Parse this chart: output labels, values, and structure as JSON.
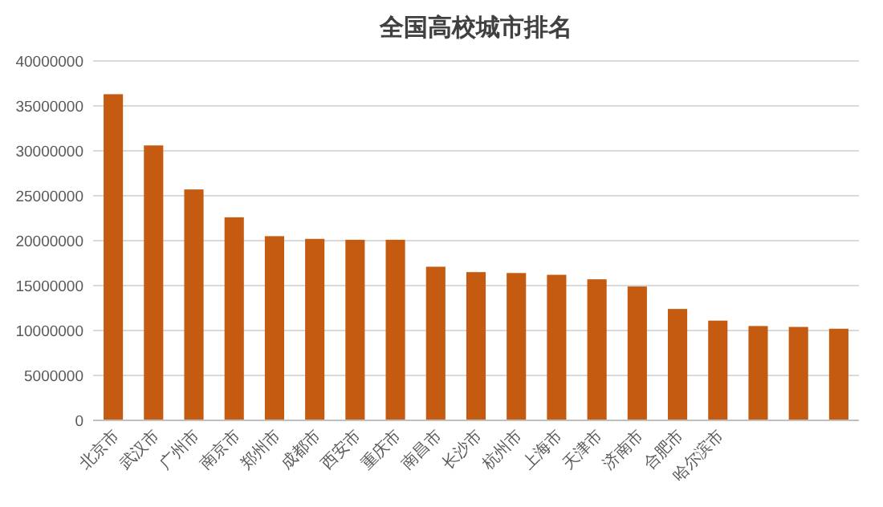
{
  "chart_data": {
    "type": "bar",
    "title": "全国高校城市排名",
    "categories": [
      "北京市",
      "武汉市",
      "广州市",
      "南京市",
      "郑州市",
      "成都市",
      "西安市",
      "重庆市",
      "南昌市",
      "长沙市",
      "杭州市",
      "上海市",
      "天津市",
      "济南市",
      "合肥市",
      "哈尔滨市",
      null,
      null,
      null
    ],
    "values": [
      36300000,
      30600000,
      25700000,
      22600000,
      20500000,
      20200000,
      20100000,
      20100000,
      17100000,
      16500000,
      16400000,
      16200000,
      15700000,
      14900000,
      12400000,
      11100000,
      10500000,
      10400000,
      10200000
    ],
    "color": "#c55a11",
    "ylim": [
      0,
      40000000
    ],
    "yticks": [
      0,
      5000000,
      10000000,
      15000000,
      20000000,
      25000000,
      30000000,
      35000000,
      40000000
    ],
    "grid": "y"
  }
}
